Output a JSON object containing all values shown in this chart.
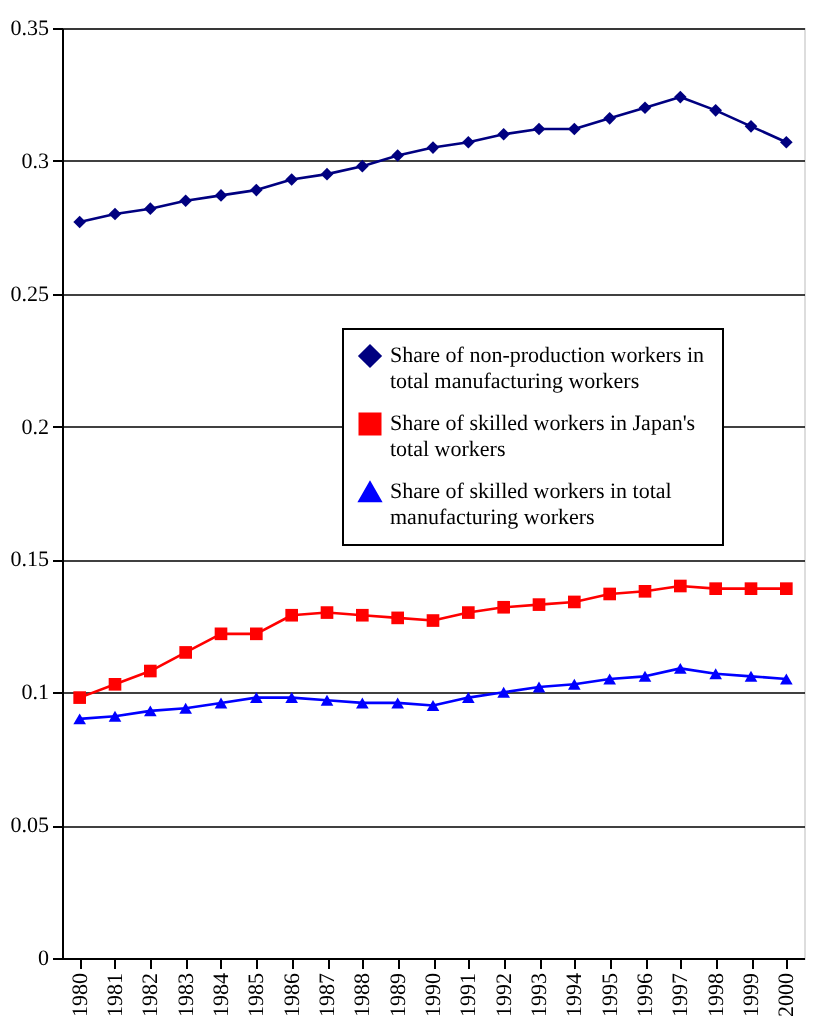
{
  "chart_data": {
    "type": "line",
    "categories": [
      "1980",
      "1981",
      "1982",
      "1983",
      "1984",
      "1985",
      "1986",
      "1987",
      "1988",
      "1989",
      "1990",
      "1991",
      "1992",
      "1993",
      "1994",
      "1995",
      "1996",
      "1997",
      "1998",
      "1999",
      "2000"
    ],
    "series": [
      {
        "name": "Share of non-production workers in total manufacturing workers",
        "color": "#000080",
        "marker": "diamond",
        "values": [
          0.277,
          0.28,
          0.282,
          0.285,
          0.287,
          0.289,
          0.293,
          0.295,
          0.298,
          0.302,
          0.305,
          0.307,
          0.31,
          0.312,
          0.312,
          0.316,
          0.32,
          0.324,
          0.319,
          0.313,
          0.307
        ]
      },
      {
        "name": "Share of skilled workers in Japan's total workers",
        "color": "#ff0000",
        "marker": "square",
        "values": [
          0.098,
          0.103,
          0.108,
          0.115,
          0.122,
          0.122,
          0.129,
          0.13,
          0.129,
          0.128,
          0.127,
          0.13,
          0.132,
          0.133,
          0.134,
          0.137,
          0.138,
          0.14,
          0.139,
          0.139,
          0.139
        ]
      },
      {
        "name": "Share of skilled workers in total manufacturing workers",
        "color": "#0000ff",
        "marker": "triangle",
        "values": [
          0.09,
          0.091,
          0.093,
          0.094,
          0.096,
          0.098,
          0.098,
          0.097,
          0.096,
          0.096,
          0.095,
          0.098,
          0.1,
          0.102,
          0.103,
          0.105,
          0.106,
          0.109,
          0.107,
          0.106,
          0.105
        ]
      }
    ],
    "ylim": [
      0,
      0.35
    ],
    "yticks": [
      0,
      0.05,
      0.1,
      0.15,
      0.2,
      0.25,
      0.3,
      0.35
    ],
    "grid": "y",
    "legend": "right",
    "line_style": "solid"
  }
}
